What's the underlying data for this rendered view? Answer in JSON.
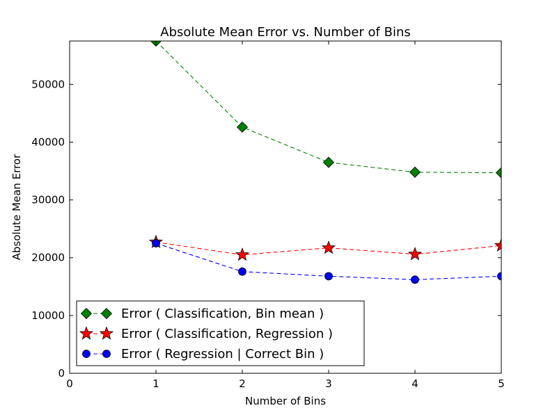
{
  "chart_data": {
    "type": "line",
    "title": "Absolute Mean Error vs. Number of Bins",
    "xlabel": "Number of Bins",
    "ylabel": "Absolute Mean Error",
    "xlim": [
      0,
      5
    ],
    "ylim": [
      0,
      57500
    ],
    "xticks": [
      "0",
      "1",
      "2",
      "3",
      "4",
      "5"
    ],
    "yticks": [
      "0",
      "10000",
      "20000",
      "30000",
      "40000",
      "50000"
    ],
    "grid": false,
    "legend_position": "lower-left",
    "x": [
      1,
      2,
      3,
      4,
      5
    ],
    "series": [
      {
        "name": "Error ( Classification, Bin mean )",
        "values": [
          57500,
          42600,
          36500,
          34800,
          34700
        ],
        "color": "#008000",
        "marker": "diamond"
      },
      {
        "name": "Error ( Classification, Regression )",
        "values": [
          22700,
          20500,
          21700,
          20600,
          22100
        ],
        "color": "#ff0000",
        "marker": "star"
      },
      {
        "name": "Error ( Regression | Correct Bin )",
        "values": [
          22500,
          17600,
          16800,
          16200,
          16800
        ],
        "color": "#0000ff",
        "marker": "circle"
      }
    ]
  }
}
